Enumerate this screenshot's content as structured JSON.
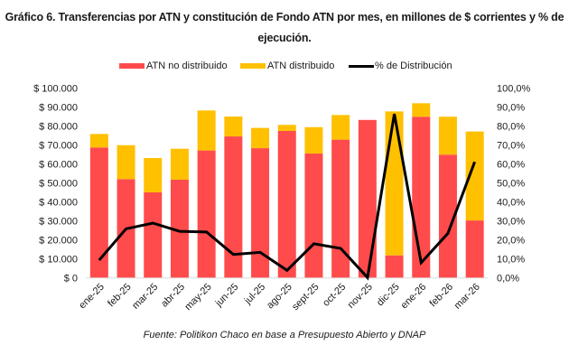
{
  "title_line1": "Gráfico 6. Transferencias por ATN y constitución de Fondo ATN por mes, en millones de $ corrientes y % de",
  "title_line2": "ejecución.",
  "source": "Fuente: Politikon Chaco en base a Presupuesto Abierto y DNAP",
  "colors": {
    "atn_no_distribuido": "#FF4B4B",
    "atn_distribuido": "#FFC000",
    "pct_distribucion": "#000000",
    "axis": "#d9d9d9"
  },
  "legend": [
    {
      "label": "ATN no distribuido",
      "type": "bar",
      "color": "#FF4B4B"
    },
    {
      "label": "ATN distribuido",
      "type": "bar",
      "color": "#FFC000"
    },
    {
      "label": "% de Distribución",
      "type": "line",
      "color": "#000000"
    }
  ],
  "chart_data": {
    "type": "bar",
    "stacked": true,
    "title": "Gráfico 6. Transferencias por ATN y constitución de Fondo ATN por mes, en millones de $ corrientes y % de ejecución.",
    "categories": [
      "ene-25",
      "feb-25",
      "mar-25",
      "abr-25",
      "may-25",
      "jun-25",
      "jul-25",
      "ago-25",
      "sept-25",
      "oct-25",
      "nov-25",
      "dic-25",
      "ene-26",
      "feb-26",
      "mar-26"
    ],
    "series": [
      {
        "name": "ATN no distribuido",
        "type": "bar",
        "axis": "left",
        "values": [
          68600,
          51900,
          44900,
          51600,
          67000,
          74400,
          68200,
          77300,
          65400,
          72700,
          83100,
          11700,
          84800,
          64800,
          30100
        ]
      },
      {
        "name": "ATN distribuido",
        "type": "bar",
        "axis": "left",
        "values": [
          7100,
          17900,
          18100,
          16300,
          21100,
          10500,
          10700,
          3200,
          13900,
          13000,
          0,
          75900,
          7100,
          20000,
          46900
        ]
      },
      {
        "name": "% de Distribución",
        "type": "line",
        "axis": "right",
        "values": [
          9.2,
          25.7,
          28.7,
          24.4,
          24.0,
          12.2,
          13.3,
          3.8,
          17.8,
          15.4,
          0.0,
          86.3,
          7.8,
          23.3,
          61.0
        ]
      }
    ],
    "left_axis": {
      "ylim": [
        0,
        100000
      ],
      "ticks": [
        0,
        10000,
        20000,
        30000,
        40000,
        50000,
        60000,
        70000,
        80000,
        90000,
        100000
      ],
      "tick_labels": [
        "$ 0",
        "$ 10.000",
        "$ 20.000",
        "$ 30.000",
        "$ 40.000",
        "$ 50.000",
        "$ 60.000",
        "$ 70.000",
        "$ 80.000",
        "$ 90.000",
        "$ 100.000"
      ]
    },
    "right_axis": {
      "ylim": [
        0,
        100
      ],
      "ticks": [
        0,
        10,
        20,
        30,
        40,
        50,
        60,
        70,
        80,
        90,
        100
      ],
      "tick_labels": [
        "0,0%",
        "10,0%",
        "20,0%",
        "30,0%",
        "40,0%",
        "50,0%",
        "60,0%",
        "70,0%",
        "80,0%",
        "90,0%",
        "100,0%"
      ]
    },
    "xlabel": "",
    "ylabel": "",
    "grid": false,
    "legend_position": "top"
  }
}
